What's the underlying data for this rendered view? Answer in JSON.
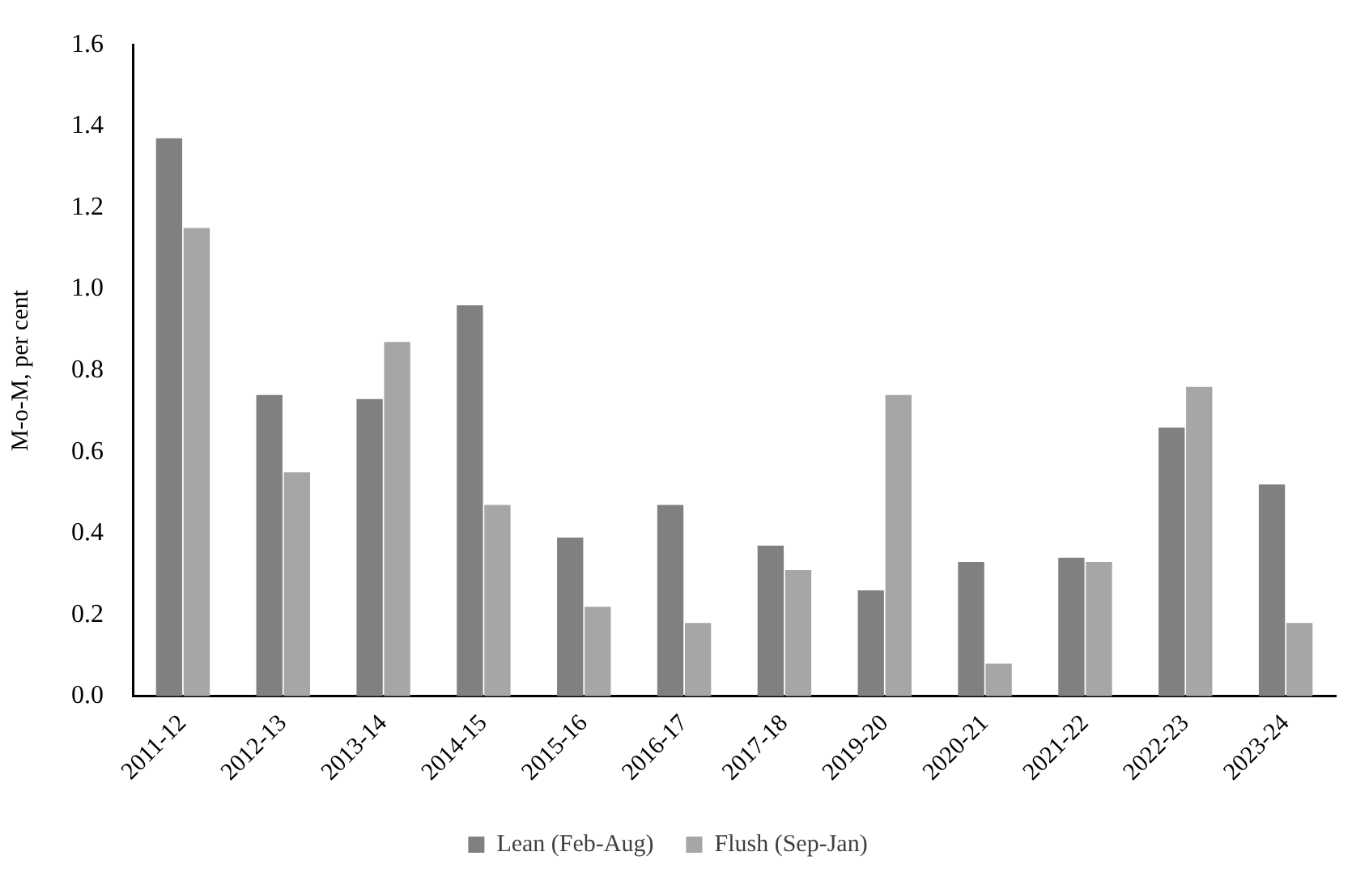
{
  "chart_data": {
    "type": "bar",
    "ylabel": "M-o-M, per cent",
    "categories": [
      "2011-12",
      "2012-13",
      "2013-14",
      "2014-15",
      "2015-16",
      "2016-17",
      "2017-18",
      "2019-20",
      "2020-21",
      "2021-22",
      "2022-23",
      "2023-24"
    ],
    "series": [
      {
        "name": "Lean (Feb-Aug)",
        "color": "#808080",
        "values": [
          1.37,
          0.74,
          0.73,
          0.96,
          0.39,
          0.47,
          0.37,
          0.26,
          0.33,
          0.34,
          0.66,
          0.52
        ]
      },
      {
        "name": "Flush (Sep-Jan)",
        "color": "#a6a6a6",
        "values": [
          1.15,
          0.55,
          0.87,
          0.47,
          0.22,
          0.18,
          0.31,
          0.74,
          0.08,
          0.33,
          0.76,
          0.18
        ]
      }
    ],
    "ylim": [
      0,
      1.6
    ],
    "yticks": [
      {
        "value": 0,
        "label": "0.0"
      },
      0.2,
      0.4,
      0.6,
      0.8,
      {
        "value": 1,
        "label": "1.0"
      },
      1.2,
      1.4,
      1.6
    ],
    "grid": false,
    "legend": "bottom"
  }
}
